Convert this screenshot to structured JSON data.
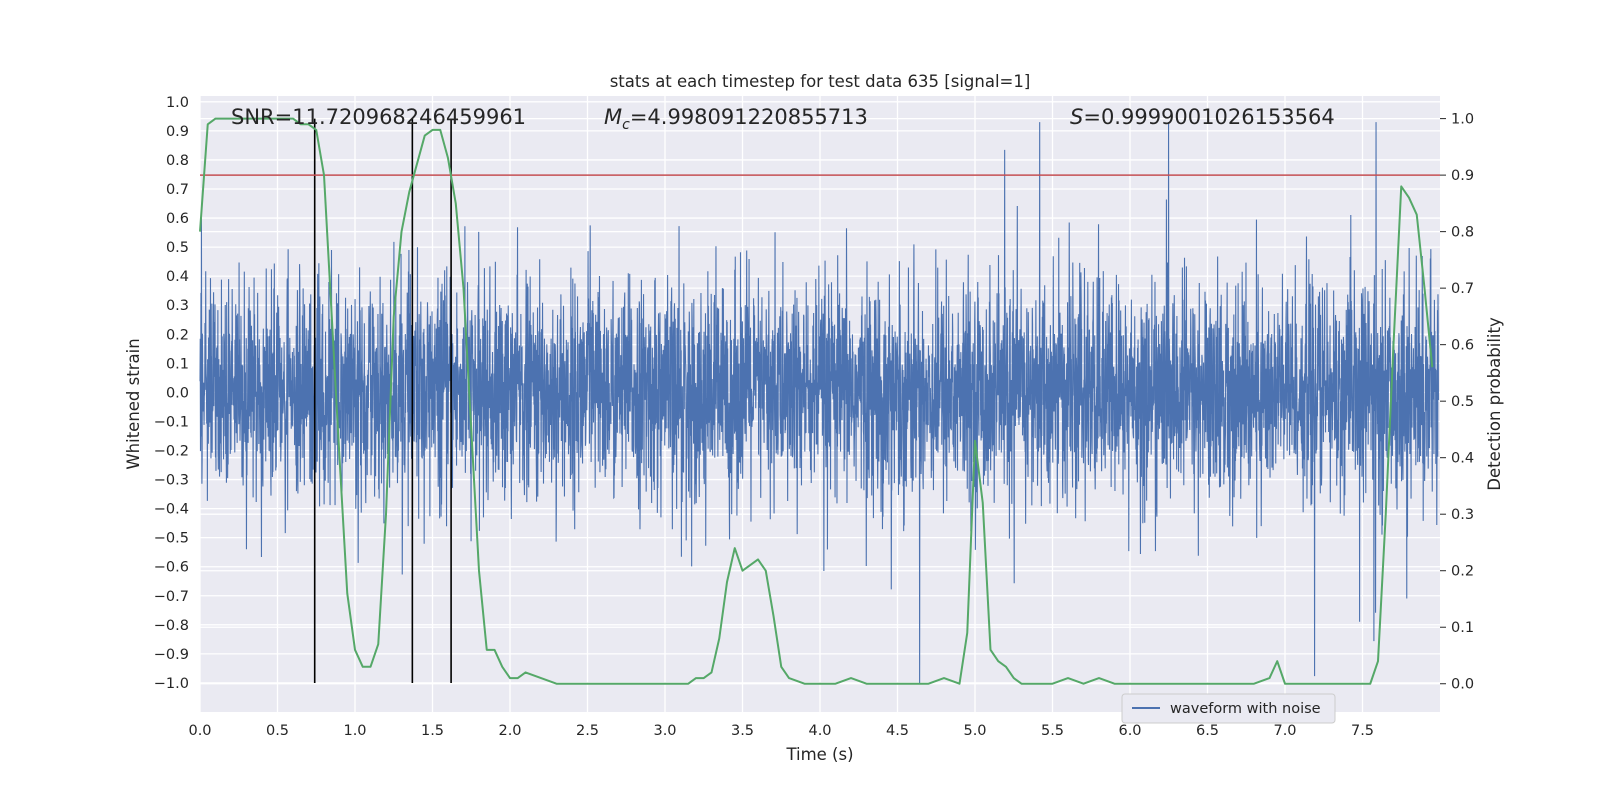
{
  "chart_data": {
    "type": "line",
    "title": "stats at each timestep for test data 635 [signal=1]",
    "xlabel": "Time (s)",
    "ylabel": "Whitened strain",
    "ylabel_right": "Detection probability",
    "xlim": [
      0,
      8
    ],
    "ylim": [
      -1.1,
      1.02
    ],
    "ylim_right": [
      -0.05,
      1.04
    ],
    "grid": true,
    "legend_position": "lower-right",
    "x_ticks": [
      "0.0",
      "0.5",
      "1.0",
      "1.5",
      "2.0",
      "2.5",
      "3.0",
      "3.5",
      "4.0",
      "4.5",
      "5.0",
      "5.5",
      "6.0",
      "6.5",
      "7.0",
      "7.5"
    ],
    "y_ticks_left": [
      "1.0",
      "0.9",
      "0.8",
      "0.7",
      "0.6",
      "0.5",
      "0.4",
      "0.3",
      "0.2",
      "0.1",
      "0.0",
      "-0.1",
      "-0.2",
      "-0.3",
      "-0.4",
      "-0.5",
      "-0.6",
      "-0.7",
      "-0.8",
      "-0.9",
      "-1.0"
    ],
    "y_ticks_right": [
      "1.0",
      "0.9",
      "0.8",
      "0.7",
      "0.6",
      "0.5",
      "0.4",
      "0.3",
      "0.2",
      "0.1",
      "0.0"
    ],
    "annotations": {
      "snr": "SNR=11.720968246459961",
      "mc_symbol": "M",
      "mc_sub": "c",
      "mc_value": "=4.998091220855713",
      "s_symbol": "S",
      "s_value": "=0.9999001026153564"
    },
    "series": [
      {
        "name": "waveform with noise",
        "axis": "left",
        "color": "#4c72b0",
        "description_level": {
          "peak_abs": 1.0,
          "typical_envelope": 0.45
        }
      },
      {
        "name": "",
        "axis": "right",
        "color": "#55a868",
        "x": [
          0.0,
          0.05,
          0.1,
          0.2,
          0.3,
          0.4,
          0.5,
          0.6,
          0.65,
          0.7,
          0.75,
          0.8,
          0.85,
          0.9,
          0.95,
          1.0,
          1.05,
          1.1,
          1.15,
          1.2,
          1.25,
          1.3,
          1.35,
          1.4,
          1.45,
          1.5,
          1.55,
          1.6,
          1.65,
          1.7,
          1.75,
          1.8,
          1.85,
          1.9,
          1.95,
          2.0,
          2.05,
          2.1,
          2.2,
          2.3,
          2.4,
          2.6,
          2.8,
          3.0,
          3.1,
          3.15,
          3.2,
          3.25,
          3.3,
          3.35,
          3.4,
          3.45,
          3.5,
          3.55,
          3.6,
          3.65,
          3.7,
          3.75,
          3.8,
          3.9,
          4.0,
          4.1,
          4.2,
          4.3,
          4.4,
          4.5,
          4.6,
          4.7,
          4.8,
          4.9,
          4.95,
          5.0,
          5.05,
          5.1,
          5.15,
          5.2,
          5.25,
          5.3,
          5.4,
          5.5,
          5.6,
          5.7,
          5.8,
          5.9,
          6.0,
          6.2,
          6.4,
          6.6,
          6.8,
          6.9,
          6.95,
          7.0,
          7.1,
          7.2,
          7.3,
          7.4,
          7.5,
          7.55,
          7.6,
          7.65,
          7.7,
          7.75,
          7.8,
          7.85,
          7.9,
          7.95
        ],
        "y": [
          0.8,
          0.99,
          1.0,
          1.0,
          1.0,
          1.0,
          1.0,
          1.0,
          0.99,
          0.99,
          0.98,
          0.9,
          0.65,
          0.4,
          0.16,
          0.06,
          0.03,
          0.03,
          0.07,
          0.3,
          0.65,
          0.8,
          0.87,
          0.92,
          0.97,
          0.98,
          0.98,
          0.93,
          0.85,
          0.7,
          0.45,
          0.2,
          0.06,
          0.06,
          0.03,
          0.01,
          0.01,
          0.02,
          0.01,
          0.0,
          0.0,
          0.0,
          0.0,
          0.0,
          0.0,
          0.0,
          0.01,
          0.01,
          0.02,
          0.08,
          0.18,
          0.24,
          0.2,
          0.21,
          0.22,
          0.2,
          0.12,
          0.03,
          0.01,
          0.0,
          0.0,
          0.0,
          0.01,
          0.0,
          0.0,
          0.0,
          0.0,
          0.0,
          0.01,
          0.0,
          0.09,
          0.43,
          0.32,
          0.06,
          0.04,
          0.03,
          0.01,
          0.0,
          0.0,
          0.0,
          0.01,
          0.0,
          0.01,
          0.0,
          0.0,
          0.0,
          0.0,
          0.0,
          0.0,
          0.01,
          0.04,
          0.0,
          0.0,
          0.0,
          0.0,
          0.0,
          0.0,
          0.0,
          0.04,
          0.3,
          0.6,
          0.88,
          0.86,
          0.83,
          0.7,
          0.56
        ]
      }
    ],
    "horizontal_line": {
      "axis": "right",
      "value": 0.9,
      "color": "#c44e52"
    },
    "vertical_lines": [
      0.74,
      1.37,
      1.62
    ]
  }
}
